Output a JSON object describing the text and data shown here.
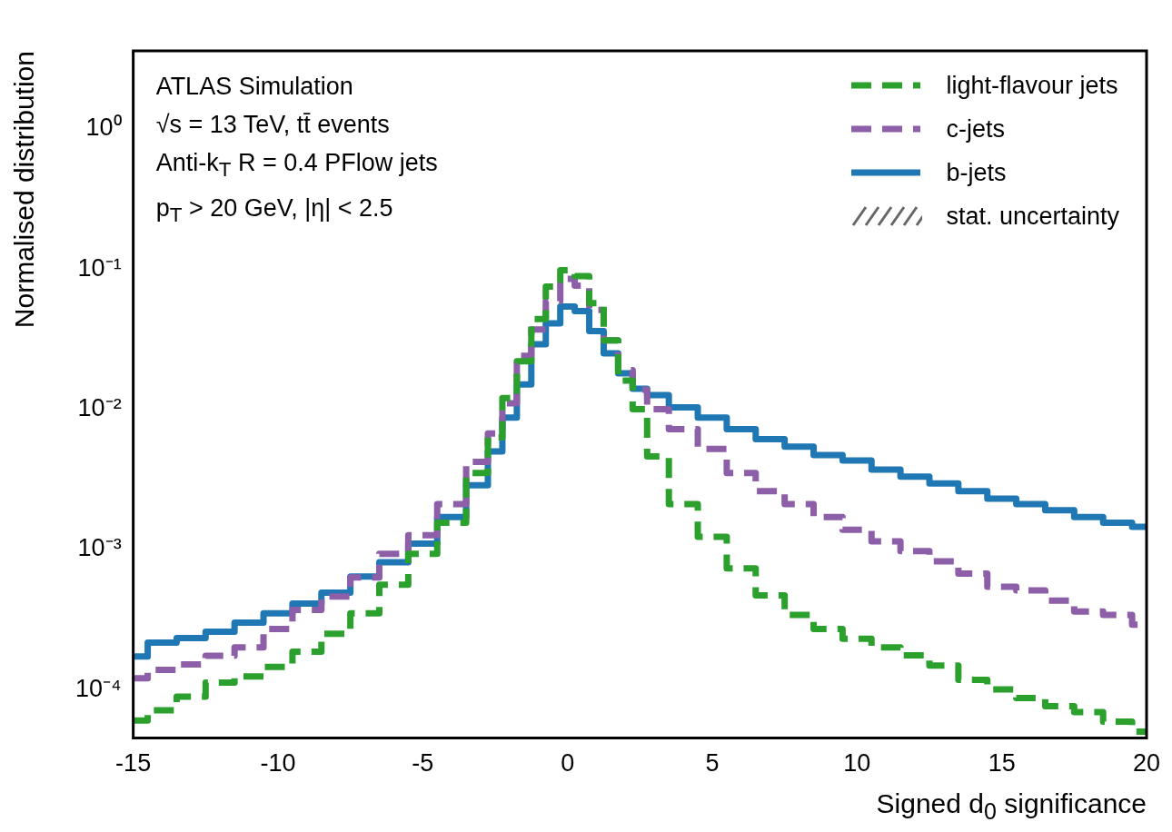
{
  "chart_data": {
    "type": "step",
    "xlabel": "Signed d$_{0}$ significance",
    "ylabel": "Normalised distribution",
    "x": [
      -15,
      -14,
      -13,
      -12,
      -11,
      -10,
      -9,
      -8,
      -7,
      -6,
      -5,
      -4,
      -3,
      -2.5,
      -2,
      -1.5,
      -1,
      -0.5,
      0,
      0.5,
      1,
      1.5,
      2,
      2.5,
      3,
      4,
      5,
      6,
      7,
      8,
      9,
      10,
      11,
      12,
      13,
      14,
      15,
      16,
      17,
      18,
      19,
      20
    ],
    "series": [
      {
        "name": "light-flavour jets",
        "color": "#2ca02c",
        "line_style": "dashed",
        "values": [
          6e-05,
          7.1e-05,
          8.9e-05,
          0.000112,
          0.000124,
          0.000145,
          0.000186,
          0.00025,
          0.00035,
          0.00056,
          0.00093,
          0.00155,
          0.0035,
          0.0063,
          0.012,
          0.022,
          0.044,
          0.075,
          0.098,
          0.089,
          0.057,
          0.031,
          0.016,
          0.01,
          0.0046,
          0.0021,
          0.00123,
          0.00073,
          0.00047,
          0.00034,
          0.00027,
          0.00023,
          0.0002,
          0.000175,
          0.000148,
          0.000117,
          0.0001,
          8.7e-05,
          7.6e-05,
          6.9e-05,
          5.9e-05,
          5e-05
        ]
      },
      {
        "name": "c-jets",
        "color": "#8c5fa8",
        "line_style": "dashed",
        "values": [
          0.00012,
          0.000138,
          0.000151,
          0.000174,
          0.0002,
          0.00027,
          0.00037,
          0.00046,
          0.00063,
          0.00093,
          0.00126,
          0.0021,
          0.0042,
          0.0067,
          0.011,
          0.024,
          0.037,
          0.059,
          0.085,
          0.076,
          0.051,
          0.031,
          0.019,
          0.0138,
          0.01,
          0.0072,
          0.0052,
          0.0035,
          0.0026,
          0.0021,
          0.0017,
          0.00138,
          0.00114,
          0.00097,
          0.00082,
          0.00067,
          0.00054,
          0.00051,
          0.00043,
          0.00036,
          0.00034,
          0.00029
        ]
      },
      {
        "name": "b-jets",
        "color": "#1f77b4",
        "line_style": "solid",
        "values": [
          0.000172,
          0.000216,
          0.000233,
          0.000258,
          0.0003,
          0.00035,
          0.00041,
          0.00049,
          0.00064,
          0.00081,
          0.0011,
          0.0017,
          0.00286,
          0.005,
          0.0087,
          0.015,
          0.029,
          0.041,
          0.054,
          0.05,
          0.036,
          0.025,
          0.018,
          0.014,
          0.0126,
          0.0103,
          0.0087,
          0.0072,
          0.0061,
          0.0054,
          0.0047,
          0.0043,
          0.0037,
          0.0033,
          0.00295,
          0.0026,
          0.0023,
          0.0021,
          0.0019,
          0.0017,
          0.00155,
          0.00145
        ]
      }
    ],
    "xlim": [
      -15,
      20
    ],
    "xticks": [
      -15,
      -10,
      -5,
      0,
      5,
      10,
      15,
      20
    ],
    "log": "y",
    "ylim": [
      4.5e-05,
      3.6
    ],
    "yticks": [
      {
        "value": 1,
        "label": "10⁰"
      },
      {
        "value": 0.1,
        "label": "10⁻¹"
      },
      {
        "value": 0.01,
        "label": "10⁻²"
      },
      {
        "value": 0.001,
        "label": "10⁻³"
      },
      {
        "value": 0.0001,
        "label": "10⁻⁴"
      }
    ],
    "legend": "top right",
    "annotations": [
      "ATLAS Simulation",
      "√s = 13 TeV, tt̄ events",
      "Anti-k$_{T}$ R = 0.4 PFlow jets",
      "p$_{T}$ > 20 GeV, |η| < 2.5",
      "stat. uncertainty"
    ]
  }
}
